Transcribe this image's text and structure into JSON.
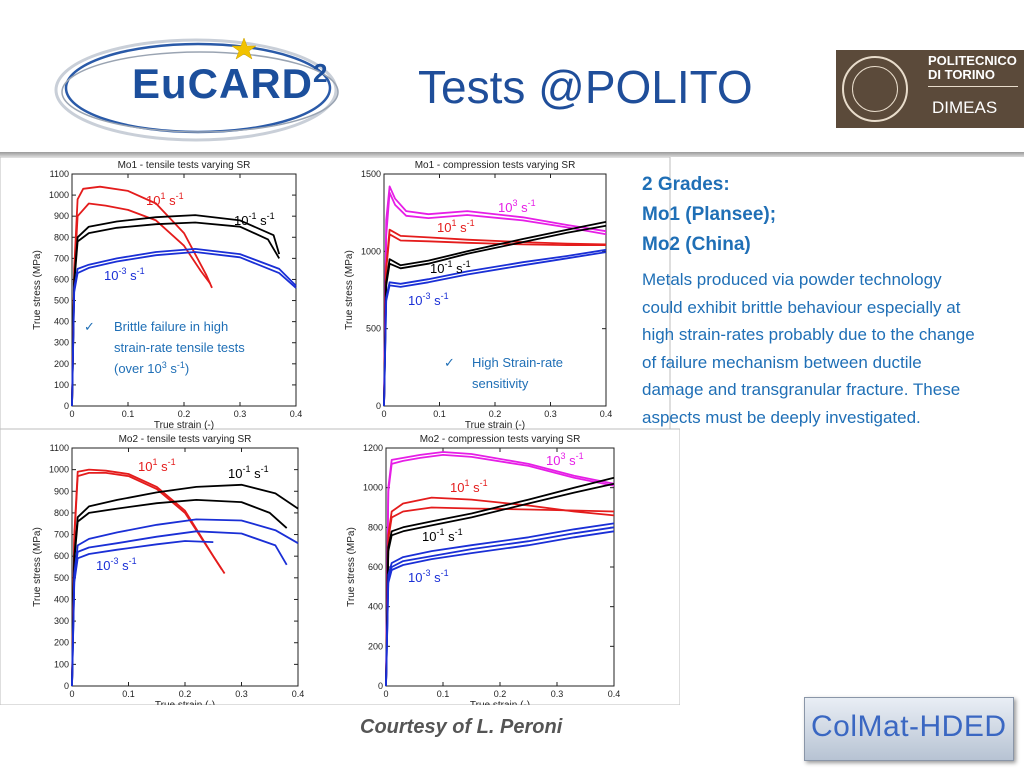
{
  "header": {
    "logo_text": "EuCARD",
    "logo_sup": "2",
    "title": "Tests @POLITO",
    "institution_line1": "POLITECNICO",
    "institution_line2": "DI TORINO",
    "department": "DIMEAS"
  },
  "colors": {
    "title": "#1f4e9a",
    "text": "#1f6fb6",
    "rate_1e1": "#e41c1c",
    "rate_1e_1": "#000000",
    "rate_1e_3": "#1a2fd6",
    "rate_1e3": "#e61ee6"
  },
  "side": {
    "line1": "2 Grades:",
    "line2": "Mo1 (Plansee);",
    "line3": "Mo2 (China)",
    "body": "Metals produced via powder technology could exhibit brittle behaviour especially at high strain-rates probably due to the change of failure mechanism between ductile damage and transgranular fracture. These aspects must be deeply investigated."
  },
  "footer": {
    "courtesy": "Courtesy of L. Peroni",
    "badge": "ColMat-HDED"
  },
  "chart_data": [
    {
      "type": "line",
      "title": "Mo1 - tensile tests varying SR",
      "xlabel": "True strain (-)",
      "ylabel": "True stress (MPa)",
      "xlim": [
        0,
        0.4
      ],
      "ylim": [
        0,
        1100
      ],
      "xticks": [
        "0",
        "0.1",
        "0.2",
        "0.3",
        "0.4"
      ],
      "yticks": [
        "0",
        "100",
        "200",
        "300",
        "400",
        "500",
        "600",
        "700",
        "800",
        "900",
        "1000",
        "1100"
      ],
      "annotation": {
        "check": "✓",
        "lines": [
          "Brittle failure in high",
          "strain-rate tensile tests",
          "(over 10",
          "3",
          " s",
          "-1",
          ")"
        ]
      },
      "series": [
        {
          "label_base": "10",
          "label_exp": "1",
          "label_unit": " s",
          "label_unit_exp": "-1",
          "color": "#e41c1c",
          "x": [
            0,
            0.004,
            0.01,
            0.02,
            0.05,
            0.1,
            0.15,
            0.2,
            0.24,
            0.25
          ],
          "y": [
            0,
            650,
            980,
            1030,
            1040,
            1020,
            960,
            820,
            620,
            560
          ]
        },
        {
          "color": "#e41c1c",
          "x": [
            0,
            0.004,
            0.01,
            0.03,
            0.06,
            0.1,
            0.15,
            0.2,
            0.23,
            0.247
          ],
          "y": [
            0,
            600,
            900,
            960,
            950,
            930,
            880,
            760,
            640,
            580
          ]
        },
        {
          "label_base": "10",
          "label_exp": "-1",
          "label_unit": " s",
          "label_unit_exp": "-1",
          "color": "#000000",
          "x": [
            0,
            0.004,
            0.01,
            0.03,
            0.08,
            0.15,
            0.22,
            0.3,
            0.36,
            0.37
          ],
          "y": [
            0,
            600,
            800,
            850,
            875,
            895,
            905,
            880,
            810,
            720
          ]
        },
        {
          "color": "#000000",
          "x": [
            0,
            0.004,
            0.01,
            0.03,
            0.08,
            0.15,
            0.22,
            0.3,
            0.35,
            0.37
          ],
          "y": [
            0,
            580,
            780,
            820,
            845,
            862,
            870,
            850,
            790,
            700
          ]
        },
        {
          "label_base": "10",
          "label_exp": "-3",
          "label_unit": " s",
          "label_unit_exp": "-1",
          "color": "#1a2fd6",
          "x": [
            0,
            0.004,
            0.01,
            0.03,
            0.08,
            0.15,
            0.22,
            0.3,
            0.37,
            0.4
          ],
          "y": [
            0,
            560,
            650,
            670,
            700,
            730,
            745,
            720,
            650,
            570
          ]
        },
        {
          "color": "#1a2fd6",
          "x": [
            0,
            0.004,
            0.01,
            0.03,
            0.08,
            0.15,
            0.22,
            0.3,
            0.37,
            0.4
          ],
          "y": [
            0,
            540,
            630,
            655,
            685,
            715,
            730,
            705,
            630,
            560
          ]
        }
      ]
    },
    {
      "type": "line",
      "title": "Mo1 - compression tests varying SR",
      "xlabel": "True strain (-)",
      "ylabel": "True stress (MPa)",
      "xlim": [
        0,
        0.4
      ],
      "ylim": [
        0,
        1500
      ],
      "xticks": [
        "0",
        "0.1",
        "0.2",
        "0.3",
        "0.4"
      ],
      "yticks": [
        "0",
        "500",
        "1000",
        "1500"
      ],
      "annotation": {
        "check": "✓",
        "lines": [
          "High Strain-rate",
          "sensitivity"
        ]
      },
      "series": [
        {
          "label_base": "10",
          "label_exp": "3",
          "label_unit": " s",
          "label_unit_exp": "-1",
          "color": "#e61ee6",
          "x": [
            0,
            0.004,
            0.01,
            0.02,
            0.04,
            0.08,
            0.15,
            0.25,
            0.33,
            0.4
          ],
          "y": [
            0,
            1200,
            1420,
            1340,
            1260,
            1240,
            1260,
            1220,
            1170,
            1130
          ]
        },
        {
          "color": "#e61ee6",
          "x": [
            0,
            0.004,
            0.01,
            0.02,
            0.04,
            0.08,
            0.15,
            0.25,
            0.33,
            0.4
          ],
          "y": [
            0,
            1100,
            1380,
            1300,
            1230,
            1215,
            1235,
            1200,
            1155,
            1110
          ]
        },
        {
          "label_base": "10",
          "label_exp": "1",
          "label_unit": " s",
          "label_unit_exp": "-1",
          "color": "#e41c1c",
          "x": [
            0,
            0.004,
            0.01,
            0.03,
            0.08,
            0.15,
            0.25,
            0.33,
            0.4
          ],
          "y": [
            0,
            900,
            1140,
            1100,
            1090,
            1075,
            1060,
            1050,
            1045
          ]
        },
        {
          "color": "#e41c1c",
          "x": [
            0,
            0.004,
            0.01,
            0.03,
            0.08,
            0.15,
            0.25,
            0.33,
            0.4
          ],
          "y": [
            0,
            880,
            1110,
            1070,
            1065,
            1055,
            1045,
            1040,
            1040
          ]
        },
        {
          "label_base": "10",
          "label_exp": "-1",
          "label_unit": " s",
          "label_unit_exp": "-1",
          "color": "#000000",
          "x": [
            0,
            0.004,
            0.01,
            0.03,
            0.08,
            0.15,
            0.25,
            0.33,
            0.4
          ],
          "y": [
            0,
            800,
            950,
            910,
            940,
            1000,
            1080,
            1140,
            1190
          ]
        },
        {
          "color": "#000000",
          "x": [
            0,
            0.004,
            0.01,
            0.03,
            0.08,
            0.15,
            0.25,
            0.33,
            0.4
          ],
          "y": [
            0,
            780,
            920,
            890,
            920,
            985,
            1060,
            1120,
            1165
          ]
        },
        {
          "label_base": "10",
          "label_exp": "-3",
          "label_unit": " s",
          "label_unit_exp": "-1",
          "color": "#1a2fd6",
          "x": [
            0,
            0.004,
            0.01,
            0.03,
            0.08,
            0.15,
            0.25,
            0.33,
            0.4
          ],
          "y": [
            0,
            700,
            800,
            790,
            820,
            870,
            930,
            970,
            1010
          ]
        },
        {
          "color": "#1a2fd6",
          "x": [
            0,
            0.004,
            0.01,
            0.03,
            0.08,
            0.15,
            0.25,
            0.33,
            0.4
          ],
          "y": [
            0,
            680,
            780,
            770,
            800,
            850,
            910,
            955,
            995
          ]
        }
      ]
    },
    {
      "type": "line",
      "title": "Mo2 - tensile tests varying SR",
      "xlabel": "True strain (-)",
      "ylabel": "True stress (MPa)",
      "xlim": [
        0,
        0.4
      ],
      "ylim": [
        0,
        1100
      ],
      "xticks": [
        "0",
        "0.1",
        "0.2",
        "0.3",
        "0.4"
      ],
      "yticks": [
        "0",
        "100",
        "200",
        "300",
        "400",
        "500",
        "600",
        "700",
        "800",
        "900",
        "1000",
        "1100"
      ],
      "series": [
        {
          "label_base": "10",
          "label_exp": "1",
          "label_unit": " s",
          "label_unit_exp": "-1",
          "color": "#e41c1c",
          "x": [
            0,
            0.004,
            0.01,
            0.03,
            0.06,
            0.1,
            0.15,
            0.2,
            0.25,
            0.27
          ],
          "y": [
            0,
            700,
            990,
            1000,
            995,
            980,
            920,
            810,
            600,
            520
          ]
        },
        {
          "color": "#e41c1c",
          "x": [
            0,
            0.004,
            0.01,
            0.03,
            0.06,
            0.1,
            0.15,
            0.2,
            0.24,
            0.265
          ],
          "y": [
            0,
            680,
            970,
            985,
            985,
            970,
            910,
            800,
            640,
            540
          ]
        },
        {
          "label_base": "10",
          "label_exp": "-1",
          "label_unit": " s",
          "label_unit_exp": "-1",
          "color": "#000000",
          "x": [
            0,
            0.004,
            0.01,
            0.03,
            0.08,
            0.15,
            0.22,
            0.3,
            0.36,
            0.4
          ],
          "y": [
            0,
            600,
            780,
            830,
            860,
            895,
            920,
            930,
            890,
            820
          ]
        },
        {
          "color": "#000000",
          "x": [
            0,
            0.004,
            0.01,
            0.03,
            0.08,
            0.15,
            0.22,
            0.3,
            0.35,
            0.38
          ],
          "y": [
            0,
            580,
            760,
            800,
            820,
            845,
            860,
            850,
            800,
            730
          ]
        },
        {
          "label_base": "10",
          "label_exp": "-3",
          "label_unit": " s",
          "label_unit_exp": "-1",
          "color": "#1a2fd6",
          "x": [
            0,
            0.004,
            0.01,
            0.03,
            0.08,
            0.15,
            0.22,
            0.3,
            0.36,
            0.4
          ],
          "y": [
            0,
            520,
            650,
            680,
            710,
            745,
            770,
            765,
            720,
            660
          ]
        },
        {
          "color": "#1a2fd6",
          "x": [
            0,
            0.004,
            0.01,
            0.03,
            0.08,
            0.15,
            0.22,
            0.3,
            0.36,
            0.38
          ],
          "y": [
            0,
            500,
            620,
            640,
            660,
            690,
            715,
            705,
            650,
            560
          ]
        },
        {
          "color": "#1a2fd6",
          "x": [
            0,
            0.004,
            0.01,
            0.03,
            0.08,
            0.15,
            0.2,
            0.25
          ],
          "y": [
            0,
            480,
            590,
            610,
            630,
            655,
            670,
            665
          ]
        }
      ]
    },
    {
      "type": "line",
      "title": "Mo2 - compression tests varying SR",
      "xlabel": "True strain (-)",
      "ylabel": "True stress (MPa)",
      "xlim": [
        0,
        0.4
      ],
      "ylim": [
        0,
        1200
      ],
      "xticks": [
        "0",
        "0.1",
        "0.2",
        "0.3",
        "0.4"
      ],
      "yticks": [
        "0",
        "200",
        "400",
        "600",
        "800",
        "1000",
        "1200"
      ],
      "series": [
        {
          "label_base": "10",
          "label_exp": "3",
          "label_unit": " s",
          "label_unit_exp": "-1",
          "color": "#e61ee6",
          "x": [
            0,
            0.004,
            0.01,
            0.03,
            0.06,
            0.1,
            0.15,
            0.25,
            0.33,
            0.4
          ],
          "y": [
            0,
            1000,
            1140,
            1150,
            1165,
            1180,
            1170,
            1120,
            1060,
            1020
          ]
        },
        {
          "color": "#e61ee6",
          "x": [
            0,
            0.004,
            0.01,
            0.03,
            0.06,
            0.1,
            0.15,
            0.25,
            0.33,
            0.4
          ],
          "y": [
            0,
            980,
            1120,
            1135,
            1150,
            1165,
            1155,
            1110,
            1050,
            1010
          ]
        },
        {
          "label_base": "10",
          "label_exp": "1",
          "label_unit": " s",
          "label_unit_exp": "-1",
          "color": "#e41c1c",
          "x": [
            0,
            0.004,
            0.01,
            0.03,
            0.08,
            0.15,
            0.25,
            0.33,
            0.4
          ],
          "y": [
            0,
            760,
            880,
            920,
            950,
            940,
            910,
            880,
            860
          ]
        },
        {
          "color": "#e41c1c",
          "x": [
            0,
            0.004,
            0.01,
            0.03,
            0.08,
            0.15,
            0.25,
            0.33,
            0.4
          ],
          "y": [
            0,
            740,
            850,
            880,
            900,
            895,
            890,
            885,
            880
          ]
        },
        {
          "label_base": "10",
          "label_exp": "-1",
          "label_unit": " s",
          "label_unit_exp": "-1",
          "color": "#000000",
          "x": [
            0,
            0.004,
            0.01,
            0.03,
            0.08,
            0.15,
            0.25,
            0.33,
            0.4
          ],
          "y": [
            0,
            700,
            780,
            800,
            830,
            870,
            940,
            1000,
            1050
          ]
        },
        {
          "color": "#000000",
          "x": [
            0,
            0.004,
            0.01,
            0.03,
            0.08,
            0.15,
            0.25,
            0.33,
            0.4
          ],
          "y": [
            0,
            680,
            760,
            780,
            810,
            850,
            920,
            975,
            1020
          ]
        },
        {
          "label_base": "10",
          "label_exp": "-3",
          "label_unit": " s",
          "label_unit_exp": "-1",
          "color": "#1a2fd6",
          "x": [
            0,
            0.004,
            0.01,
            0.03,
            0.08,
            0.15,
            0.25,
            0.33,
            0.4
          ],
          "y": [
            0,
            560,
            620,
            650,
            680,
            710,
            750,
            790,
            820
          ]
        },
        {
          "color": "#1a2fd6",
          "x": [
            0,
            0.004,
            0.01,
            0.03,
            0.08,
            0.15,
            0.25,
            0.33,
            0.4
          ],
          "y": [
            0,
            540,
            600,
            630,
            655,
            690,
            730,
            770,
            800
          ]
        },
        {
          "color": "#1a2fd6",
          "x": [
            0,
            0.004,
            0.01,
            0.03,
            0.08,
            0.15,
            0.25,
            0.33,
            0.4
          ],
          "y": [
            0,
            520,
            585,
            610,
            640,
            670,
            710,
            750,
            780
          ]
        }
      ]
    }
  ]
}
